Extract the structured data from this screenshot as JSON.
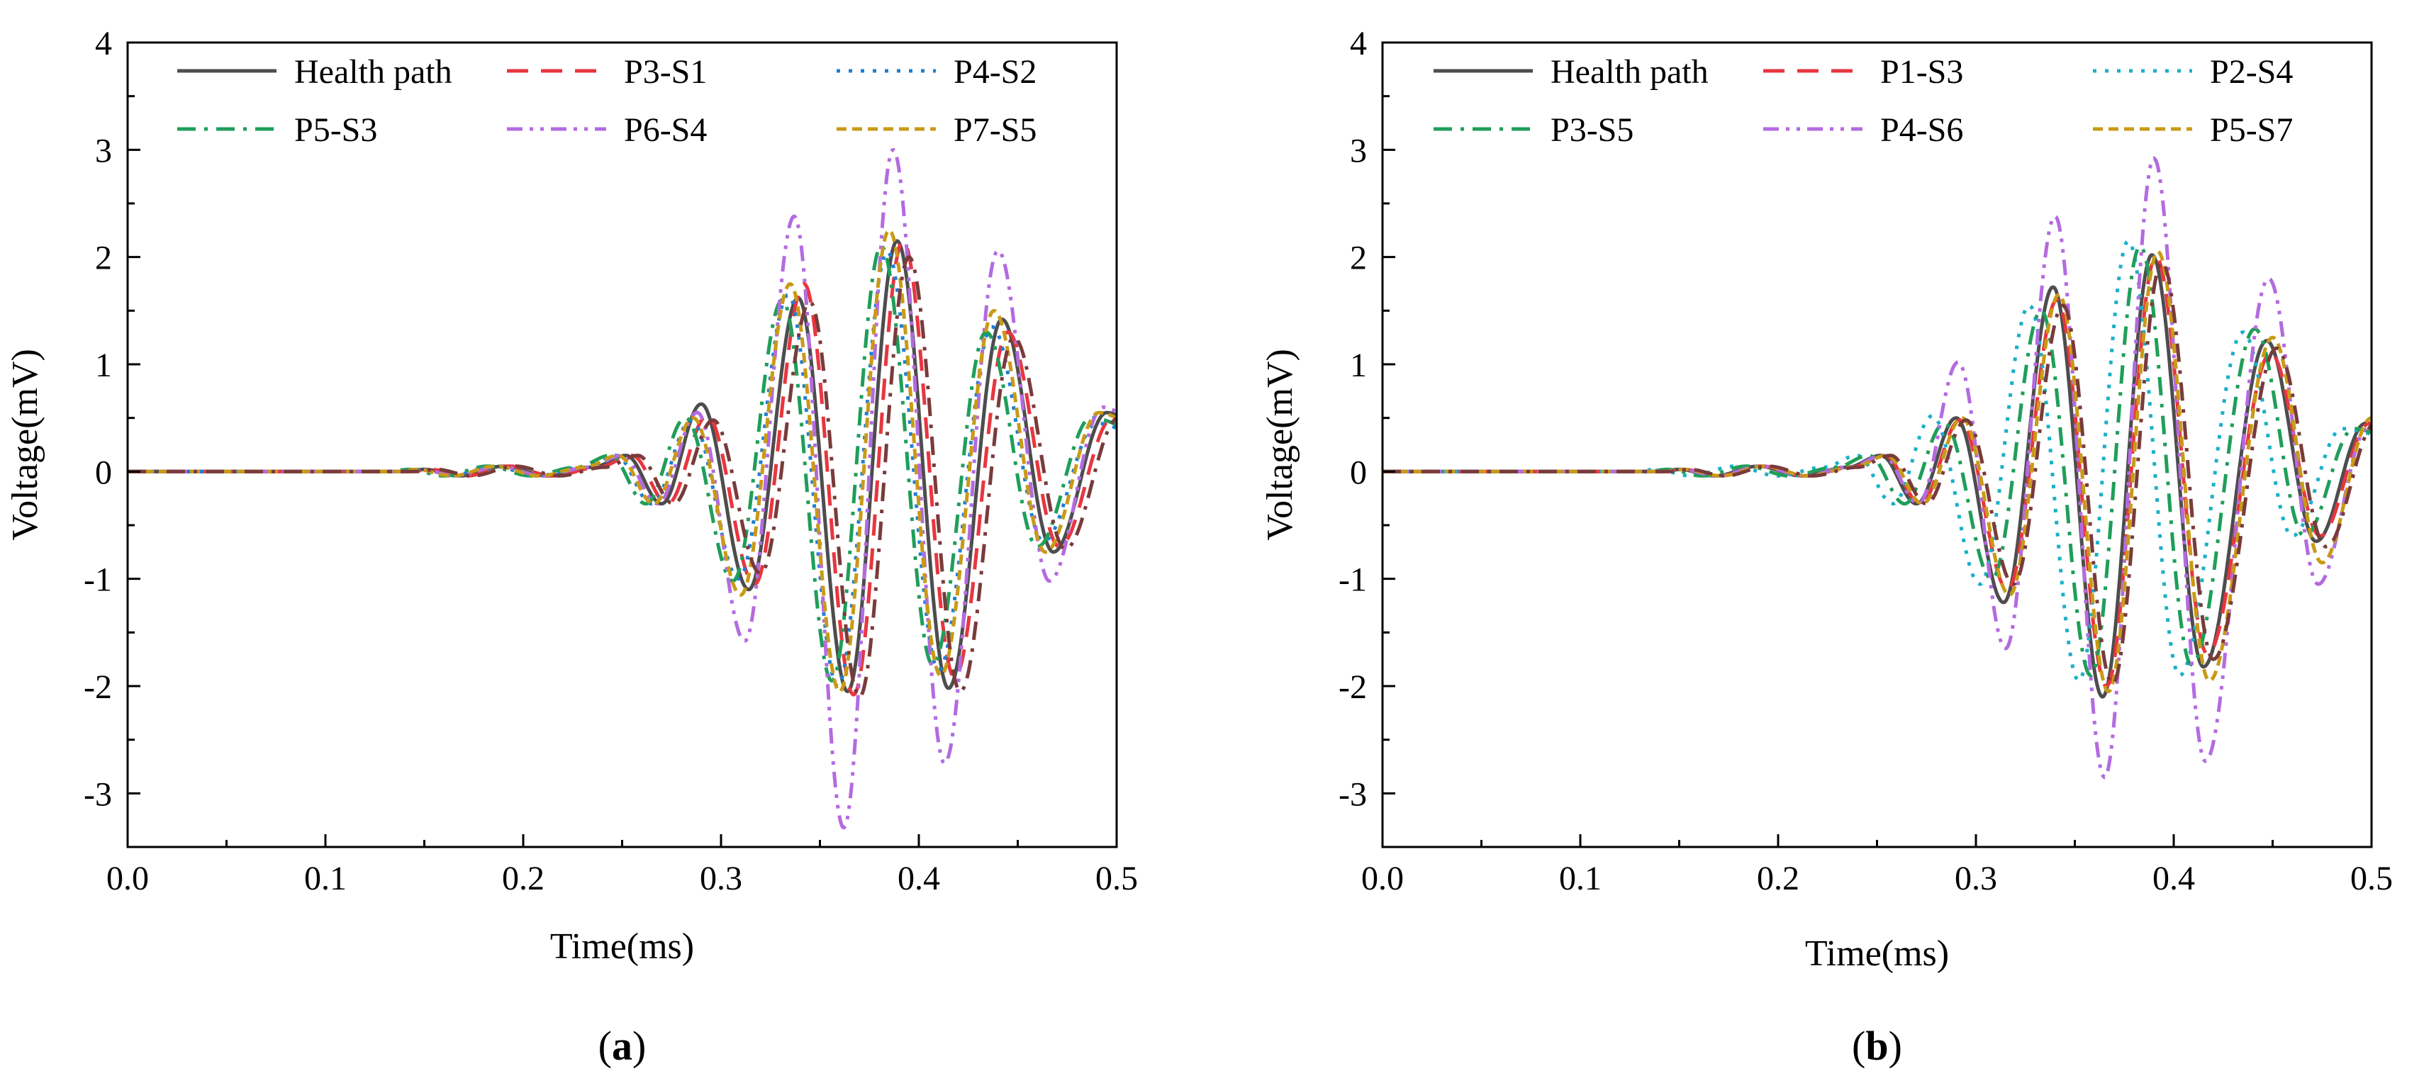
{
  "chart_data": [
    {
      "type": "line",
      "panel_label": "a",
      "title": "",
      "xlabel": "Time(ms)",
      "ylabel": "Voltage(mV)",
      "xlim": [
        0.0,
        0.5
      ],
      "ylim": [
        -3.5,
        4
      ],
      "xticks": [
        0.0,
        0.1,
        0.2,
        0.3,
        0.4,
        0.5
      ],
      "xtick_labels": [
        "0.0",
        "0.1",
        "0.2",
        "0.3",
        "0.4",
        "0.5"
      ],
      "yticks": [
        -3,
        -2,
        -1,
        0,
        1,
        2,
        3,
        4
      ],
      "ytick_labels": [
        "-3",
        "-2",
        "-1",
        "0",
        "1",
        "2",
        "3",
        "4"
      ],
      "grid": false,
      "legend_position": "top-left",
      "series": [
        {
          "name": "Health path",
          "color": "#4d4d4d",
          "dash": "solid",
          "shift": 0.0,
          "amp": 1.0,
          "peaks": [
            {
              "t": 0.29,
              "v": 0.63
            },
            {
              "t": 0.314,
              "v": -1.1
            },
            {
              "t": 0.339,
              "v": 1.62
            },
            {
              "t": 0.364,
              "v": -2.05
            },
            {
              "t": 0.389,
              "v": 2.15
            },
            {
              "t": 0.415,
              "v": -2.02
            },
            {
              "t": 0.442,
              "v": 1.42
            },
            {
              "t": 0.468,
              "v": -0.75
            },
            {
              "t": 0.495,
              "v": 0.55
            }
          ]
        },
        {
          "name": "P3-S1",
          "color": "#e8363f",
          "dash": "long-dash",
          "shift": 0.003,
          "amp": 1.0,
          "peaks": [
            {
              "t": 0.29,
              "v": 0.52
            },
            {
              "t": 0.314,
              "v": -1.05
            },
            {
              "t": 0.339,
              "v": 1.75
            },
            {
              "t": 0.364,
              "v": -2.08
            },
            {
              "t": 0.389,
              "v": 2.15
            },
            {
              "t": 0.415,
              "v": -1.92
            },
            {
              "t": 0.442,
              "v": 1.3
            },
            {
              "t": 0.468,
              "v": -0.7
            },
            {
              "t": 0.495,
              "v": 0.5
            }
          ]
        },
        {
          "name": "P4-S2",
          "color": "#1e7fd6",
          "dash": "dot",
          "shift": -0.005,
          "amp": 1.0,
          "peaks": [
            {
              "t": 0.29,
              "v": 0.48
            },
            {
              "t": 0.314,
              "v": -1.0
            },
            {
              "t": 0.339,
              "v": 1.65
            },
            {
              "t": 0.364,
              "v": -2.0
            },
            {
              "t": 0.389,
              "v": 2.05
            },
            {
              "t": 0.415,
              "v": -1.85
            },
            {
              "t": 0.442,
              "v": 1.35
            },
            {
              "t": 0.468,
              "v": -0.65
            },
            {
              "t": 0.495,
              "v": 0.45
            }
          ]
        },
        {
          "name": "P5-S3",
          "color": "#1f9e5a",
          "dash": "dash-dot",
          "shift": -0.008,
          "amp": 1.0,
          "peaks": [
            {
              "t": 0.29,
              "v": 0.5
            },
            {
              "t": 0.314,
              "v": -1.02
            },
            {
              "t": 0.339,
              "v": 1.6
            },
            {
              "t": 0.364,
              "v": -1.95
            },
            {
              "t": 0.389,
              "v": 2.1
            },
            {
              "t": 0.415,
              "v": -1.8
            },
            {
              "t": 0.442,
              "v": 1.3
            },
            {
              "t": 0.468,
              "v": -0.7
            },
            {
              "t": 0.495,
              "v": 0.5
            }
          ]
        },
        {
          "name": "P6-S4",
          "color": "#b36be0",
          "dash": "dash-dot-dot",
          "shift": -0.002,
          "amp": 1.0,
          "peaks": [
            {
              "t": 0.29,
              "v": 0.55
            },
            {
              "t": 0.314,
              "v": -1.58
            },
            {
              "t": 0.339,
              "v": 2.38
            },
            {
              "t": 0.364,
              "v": -3.32
            },
            {
              "t": 0.389,
              "v": 3.0
            },
            {
              "t": 0.415,
              "v": -2.72
            },
            {
              "t": 0.442,
              "v": 2.06
            },
            {
              "t": 0.468,
              "v": -1.02
            },
            {
              "t": 0.495,
              "v": 0.6
            }
          ]
        },
        {
          "name": "P7-S5",
          "color": "#c99a16",
          "dash": "short-dash",
          "shift": -0.004,
          "amp": 1.0,
          "peaks": [
            {
              "t": 0.29,
              "v": 0.5
            },
            {
              "t": 0.314,
              "v": -1.15
            },
            {
              "t": 0.339,
              "v": 1.75
            },
            {
              "t": 0.364,
              "v": -2.05
            },
            {
              "t": 0.389,
              "v": 2.25
            },
            {
              "t": 0.415,
              "v": -1.9
            },
            {
              "t": 0.442,
              "v": 1.5
            },
            {
              "t": 0.468,
              "v": -0.75
            },
            {
              "t": 0.495,
              "v": 0.55
            }
          ]
        },
        {
          "name": "",
          "color": "#7a3b3b",
          "dash": "dash-dot",
          "shift": 0.006,
          "amp": 1.0,
          "peaks": [
            {
              "t": 0.29,
              "v": 0.48
            },
            {
              "t": 0.314,
              "v": -0.95
            },
            {
              "t": 0.339,
              "v": 1.58
            },
            {
              "t": 0.364,
              "v": -2.1
            },
            {
              "t": 0.389,
              "v": 2.0
            },
            {
              "t": 0.415,
              "v": -2.05
            },
            {
              "t": 0.442,
              "v": 1.25
            },
            {
              "t": 0.468,
              "v": -0.72
            },
            {
              "t": 0.495,
              "v": 0.5
            }
          ]
        }
      ]
    },
    {
      "type": "line",
      "panel_label": "b",
      "title": "",
      "xlabel": "Time(ms)",
      "ylabel": "Voltage(mV)",
      "xlim": [
        0.0,
        0.5
      ],
      "ylim": [
        -3.5,
        4
      ],
      "xticks": [
        0.0,
        0.1,
        0.2,
        0.3,
        0.4,
        0.5
      ],
      "xtick_labels": [
        "0.0",
        "0.1",
        "0.2",
        "0.3",
        "0.4",
        "0.5"
      ],
      "yticks": [
        -3,
        -2,
        -1,
        0,
        1,
        2,
        3,
        4
      ],
      "ytick_labels": [
        "-3",
        "-2",
        "-1",
        "0",
        "1",
        "2",
        "3",
        "4"
      ],
      "grid": false,
      "legend_position": "top-left",
      "series": [
        {
          "name": "Health path",
          "color": "#4d4d4d",
          "dash": "solid",
          "shift": 0.0,
          "amp": 1.0,
          "peaks": [
            {
              "t": 0.29,
              "v": 0.5
            },
            {
              "t": 0.314,
              "v": -1.22
            },
            {
              "t": 0.339,
              "v": 1.72
            },
            {
              "t": 0.364,
              "v": -2.1
            },
            {
              "t": 0.389,
              "v": 2.02
            },
            {
              "t": 0.415,
              "v": -1.82
            },
            {
              "t": 0.447,
              "v": 1.22
            },
            {
              "t": 0.472,
              "v": -0.65
            },
            {
              "t": 0.497,
              "v": 0.45
            }
          ]
        },
        {
          "name": "P1-S3",
          "color": "#e8363f",
          "dash": "long-dash",
          "shift": 0.002,
          "amp": 1.0,
          "peaks": [
            {
              "t": 0.29,
              "v": 0.48
            },
            {
              "t": 0.314,
              "v": -1.1
            },
            {
              "t": 0.339,
              "v": 1.6
            },
            {
              "t": 0.364,
              "v": -2.0
            },
            {
              "t": 0.389,
              "v": 2.0
            },
            {
              "t": 0.415,
              "v": -1.7
            },
            {
              "t": 0.447,
              "v": 1.1
            },
            {
              "t": 0.472,
              "v": -0.6
            },
            {
              "t": 0.497,
              "v": 0.45
            }
          ]
        },
        {
          "name": "P2-S4",
          "color": "#1ab0c9",
          "dash": "dot",
          "shift": -0.012,
          "amp": 1.0,
          "peaks": [
            {
              "t": 0.29,
              "v": 0.52
            },
            {
              "t": 0.314,
              "v": -1.05
            },
            {
              "t": 0.339,
              "v": 1.55
            },
            {
              "t": 0.364,
              "v": -1.95
            },
            {
              "t": 0.389,
              "v": 2.15
            },
            {
              "t": 0.415,
              "v": -1.9
            },
            {
              "t": 0.447,
              "v": 1.3
            },
            {
              "t": 0.472,
              "v": -0.6
            },
            {
              "t": 0.497,
              "v": 0.4
            }
          ]
        },
        {
          "name": "P3-S5",
          "color": "#1f9e5a",
          "dash": "dash-dot",
          "shift": -0.006,
          "amp": 1.0,
          "peaks": [
            {
              "t": 0.29,
              "v": 0.45
            },
            {
              "t": 0.314,
              "v": -1.0
            },
            {
              "t": 0.339,
              "v": 1.5
            },
            {
              "t": 0.364,
              "v": -1.9
            },
            {
              "t": 0.389,
              "v": 2.1
            },
            {
              "t": 0.415,
              "v": -1.8
            },
            {
              "t": 0.447,
              "v": 1.33
            },
            {
              "t": 0.472,
              "v": -0.6
            },
            {
              "t": 0.497,
              "v": 0.4
            }
          ]
        },
        {
          "name": "P4-S6",
          "color": "#b36be0",
          "dash": "dash-dot-dot",
          "shift": 0.001,
          "amp": 1.0,
          "peaks": [
            {
              "t": 0.29,
              "v": 1.02
            },
            {
              "t": 0.314,
              "v": -1.65
            },
            {
              "t": 0.339,
              "v": 2.38
            },
            {
              "t": 0.364,
              "v": -2.85
            },
            {
              "t": 0.389,
              "v": 2.92
            },
            {
              "t": 0.415,
              "v": -2.7
            },
            {
              "t": 0.447,
              "v": 1.8
            },
            {
              "t": 0.472,
              "v": -1.05
            },
            {
              "t": 0.497,
              "v": 0.4
            }
          ]
        },
        {
          "name": "P5-S7",
          "color": "#c99a16",
          "dash": "short-dash",
          "shift": 0.003,
          "amp": 1.0,
          "peaks": [
            {
              "t": 0.29,
              "v": 0.5
            },
            {
              "t": 0.314,
              "v": -1.15
            },
            {
              "t": 0.339,
              "v": 1.65
            },
            {
              "t": 0.364,
              "v": -2.05
            },
            {
              "t": 0.389,
              "v": 2.05
            },
            {
              "t": 0.415,
              "v": -1.95
            },
            {
              "t": 0.447,
              "v": 1.25
            },
            {
              "t": 0.472,
              "v": -0.85
            },
            {
              "t": 0.497,
              "v": 0.5
            }
          ]
        },
        {
          "name": "",
          "color": "#7a3b3b",
          "dash": "dash-dot",
          "shift": 0.005,
          "amp": 1.0,
          "peaks": [
            {
              "t": 0.29,
              "v": 0.48
            },
            {
              "t": 0.314,
              "v": -1.05
            },
            {
              "t": 0.339,
              "v": 1.55
            },
            {
              "t": 0.364,
              "v": -1.98
            },
            {
              "t": 0.389,
              "v": 1.95
            },
            {
              "t": 0.415,
              "v": -1.75
            },
            {
              "t": 0.447,
              "v": 1.15
            },
            {
              "t": 0.472,
              "v": -0.7
            },
            {
              "t": 0.497,
              "v": 0.45
            }
          ]
        }
      ]
    }
  ]
}
